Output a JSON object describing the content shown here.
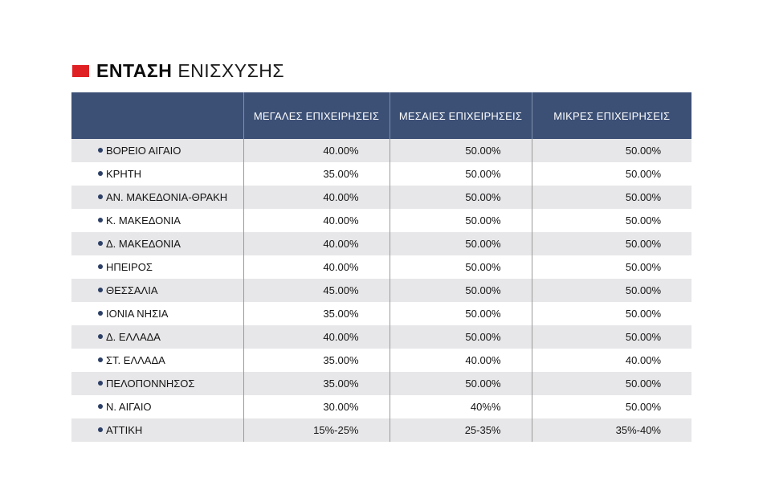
{
  "title": {
    "bold": "ΕΝΤΑΣΗ",
    "light": "ΕΝΙΣΧΥΣΗΣ"
  },
  "accent_color": "#e02124",
  "header_color": "#3c5076",
  "columns": [
    "",
    "ΜΕΓΑΛΕΣ ΕΠΙΧΕΙΡΗΣΕΙΣ",
    "ΜΕΣΑΙΕΣ ΕΠΙΧΕΙΡΗΣΕΙΣ",
    "ΜΙΚΡΕΣ ΕΠΙΧΕΙΡΗΣΕΙΣ"
  ],
  "rows": [
    {
      "region": "ΒΟΡΕΙΟ ΑΙΓΑΙΟ",
      "large": "40.00%",
      "medium": "50.00%",
      "small": "50.00%"
    },
    {
      "region": "ΚΡΗΤΗ",
      "large": "35.00%",
      "medium": "50.00%",
      "small": "50.00%"
    },
    {
      "region": "ΑΝ. ΜΑΚΕΔΟΝΙΑ-ΘΡΑΚΗ",
      "large": "40.00%",
      "medium": "50.00%",
      "small": "50.00%"
    },
    {
      "region": "Κ. ΜΑΚΕΔΟΝΙΑ",
      "large": "40.00%",
      "medium": "50.00%",
      "small": "50.00%"
    },
    {
      "region": "Δ. ΜΑΚΕΔΟΝΙΑ",
      "large": "40.00%",
      "medium": "50.00%",
      "small": "50.00%"
    },
    {
      "region": "ΗΠΕΙΡΟΣ",
      "large": "40.00%",
      "medium": "50.00%",
      "small": "50.00%"
    },
    {
      "region": "ΘΕΣΣΑΛΙΑ",
      "large": "45.00%",
      "medium": "50.00%",
      "small": "50.00%"
    },
    {
      "region": "ΙΟΝΙΑ ΝΗΣΙΑ",
      "large": "35.00%",
      "medium": "50.00%",
      "small": "50.00%"
    },
    {
      "region": "Δ. ΕΛΛΑΔΑ",
      "large": "40.00%",
      "medium": "50.00%",
      "small": "50.00%"
    },
    {
      "region": "ΣΤ. ΕΛΛΑΔΑ",
      "large": "35.00%",
      "medium": "40.00%",
      "small": "40.00%"
    },
    {
      "region": "ΠΕΛΟΠΟΝΝΗΣΟΣ",
      "large": "35.00%",
      "medium": "50.00%",
      "small": "50.00%"
    },
    {
      "region": "Ν. ΑΙΓΑΙΟ",
      "large": "30.00%",
      "medium": "40%%",
      "small": "50.00%"
    },
    {
      "region": "ΑΤΤΙΚΗ",
      "large": "15%-25%",
      "medium": "25-35%",
      "small": "35%-40%"
    }
  ]
}
